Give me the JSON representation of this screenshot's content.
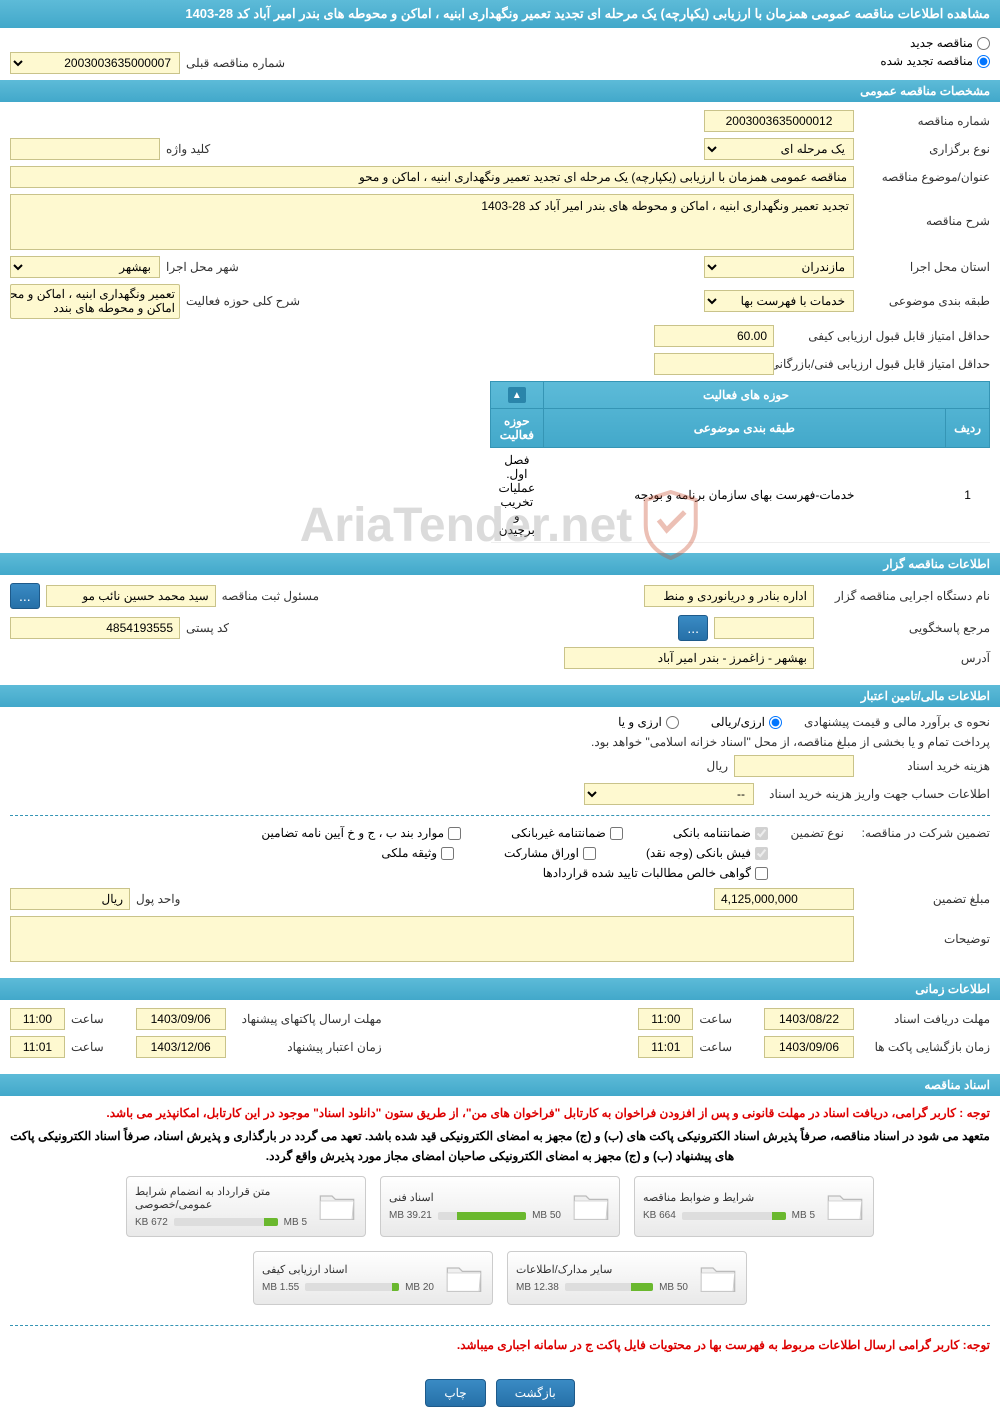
{
  "header": {
    "title": "مشاهده اطلاعات مناقصه عمومی همزمان با ارزیابی (یکپارچه) یک مرحله ای تجدید تعمیر ونگهداری ابنیه ، اماکن و محوطه های بندر امیر آباد کد 28-1403"
  },
  "tender_type": {
    "new_label": "مناقصه جدید",
    "renewed_label": "مناقصه تجدید شده",
    "prev_number_label": "شماره مناقصه قبلی",
    "prev_number_value": "2003003635000007"
  },
  "general": {
    "section_title": "مشخصات مناقصه عمومی",
    "tender_number_label": "شماره مناقصه",
    "tender_number": "2003003635000012",
    "holding_type_label": "نوع برگزاری",
    "holding_type": "یک مرحله ای",
    "keyword_label": "کلید واژه",
    "keyword": "",
    "title_label": "عنوان/موضوع مناقصه",
    "title": "مناقصه عمومی همزمان با ارزیابی (یکپارچه) یک مرحله ای تجدید تعمیر ونگهداری ابنیه ، اماکن و محو",
    "desc_label": "شرح مناقصه",
    "desc": "تجدید تعمیر ونگهداری ابنیه ، اماکن و محوطه های بندر امیر آباد کد 28-1403",
    "province_label": "استان محل اجرا",
    "province": "مازندران",
    "city_label": "شهر محل اجرا",
    "city": "بهشهر",
    "subject_class_label": "طبقه بندی موضوعی",
    "subject_class": "خدمات با فهرست بها",
    "activity_scope_label": "شرح کلی حوزه فعالیت",
    "activity_scope": "تعمیر ونگهداری ابنیه ، اماکن و محوطه های بندد",
    "min_score_qual_label": "حداقل امتیاز قابل قبول ارزیابی کیفی",
    "min_score_qual": "60.00",
    "min_score_tech_label": "حداقل امتیاز قابل قبول ارزیابی فنی/بازرگانی",
    "min_score_tech": ""
  },
  "activity_table": {
    "title": "حوزه های فعالیت",
    "col_row": "ردیف",
    "col_subject": "طبقه بندی موضوعی",
    "col_scope": "حوزه فعالیت",
    "rows": [
      {
        "n": "1",
        "subject": "خدمات-فهرست بهای سازمان برنامه و بودجه",
        "scope": "فصل اول. عملیات تخریب و برچیدن"
      }
    ]
  },
  "organizer": {
    "section_title": "اطلاعات مناقصه گزار",
    "exec_org_label": "نام دستگاه اجرایی مناقصه گزار",
    "exec_org": "اداره بنادر و دریانوردی و منط",
    "registrar_label": "مسئول ثبت مناقصه",
    "registrar": "سید محمد حسین نائب مو",
    "reply_ref_label": "مرجع پاسخگویی",
    "reply_ref": "",
    "postal_label": "کد پستی",
    "postal": "4854193555",
    "address_label": "آدرس",
    "address": "بهشهر - زاغمرز - بندر امیر آباد"
  },
  "financial": {
    "section_title": "اطلاعات مالی/تامین اعتبار",
    "estimate_label": "نحوه ی برآورد مالی و قیمت پیشنهادی",
    "option_rial": "ارزی/ریالی",
    "option_currency": "ارزی و یا",
    "treasury_note": "پرداخت تمام و یا بخشی از مبلغ مناقصه، از محل \"اسناد خزانه اسلامی\" خواهد بود.",
    "doc_cost_label": "هزینه خرید اسناد",
    "doc_cost": "",
    "doc_cost_unit": "ریال",
    "deposit_account_label": "اطلاعات حساب جهت واریز هزینه خرید اسناد",
    "deposit_account": "--",
    "guarantee_label": "تضمین شرکت در مناقصه:",
    "guarantee_type_label": "نوع تضمین",
    "check_bank_guarantee": "ضمانتنامه بانکی",
    "check_nonbank_guarantee": "ضمانتنامه غیربانکی",
    "check_bond": "موارد بند ب ، ج و خ آیین نامه تضامین",
    "check_cash": "فیش بانکی (وجه نقد)",
    "check_securities": "اوراق مشارکت",
    "check_property": "وثیقه ملکی",
    "check_receivables": "گواهی خالص مطالبات تایید شده قراردادها",
    "guarantee_amount_label": "مبلغ تضمین",
    "guarantee_amount": "4,125,000,000",
    "currency_unit_label": "واحد پول",
    "currency_unit": "ریال",
    "remarks_label": "توضیحات",
    "remarks": ""
  },
  "timing": {
    "section_title": "اطلاعات زمانی",
    "deadline_docs_label": "مهلت دریافت اسناد",
    "deadline_docs_date": "1403/08/22",
    "deadline_docs_time_label": "ساعت",
    "deadline_docs_time": "11:00",
    "deadline_proposals_label": "مهلت ارسال پاکتهای پیشنهاد",
    "deadline_proposals_date": "1403/09/06",
    "deadline_proposals_time_label": "ساعت",
    "deadline_proposals_time": "11:00",
    "opening_label": "زمان بازگشایی پاکت ها",
    "opening_date": "1403/09/06",
    "opening_time_label": "ساعت",
    "opening_time": "11:01",
    "validity_label": "زمان اعتبار پیشنهاد",
    "validity_date": "1403/12/06",
    "validity_time_label": "ساعت",
    "validity_time": "11:01"
  },
  "documents": {
    "section_title": "اسناد مناقصه",
    "notice1": "توجه : کاربر گرامی، دریافت اسناد در مهلت قانونی و پس از افزودن فراخوان به کارتابل \"فراخوان های من\"، از طریق ستون \"دانلود اسناد\" موجود در این کارتابل، امکانپذیر می باشد.",
    "notice2": "متعهد می شود در اسناد مناقصه، صرفاً پذیرش اسناد الکترونیکی پاکت های (ب) و (ج) مجهز به امضای الکترونیکی قید شده باشد. تعهد می گردد در بارگذاری و پذیرش اسناد، صرفاً اسناد الکترونیکی پاکت های پیشنهاد (ب) و (ج) مجهز به امضای الکترونیکی صاحبان امضای مجاز مورد پذیرش واقع گردد.",
    "notice3": "توجه: کاربر گرامی ارسال اطلاعات مربوط به فهرست بها در محتویات فایل پاکت ج در سامانه اجباری میباشد.",
    "files": [
      {
        "title": "شرایط و ضوابط مناقصه",
        "used": "664 KB",
        "total": "5 MB",
        "pct": 13
      },
      {
        "title": "اسناد فنی",
        "used": "39.21 MB",
        "total": "50 MB",
        "pct": 78
      },
      {
        "title": "متن قرارداد به انضمام شرایط عمومی/خصوصی",
        "used": "672 KB",
        "total": "5 MB",
        "pct": 13
      },
      {
        "title": "سایر مدارک/اطلاعات",
        "used": "12.38 MB",
        "total": "50 MB",
        "pct": 25
      },
      {
        "title": "اسناد ارزیابی کیفی",
        "used": "1.55 MB",
        "total": "20 MB",
        "pct": 8
      }
    ]
  },
  "buttons": {
    "back": "بازگشت",
    "print": "چاپ"
  },
  "watermark": {
    "text": "AriaTender.net"
  },
  "style": {
    "bar_bg": "#42a8ca",
    "input_bg": "#fef9d0",
    "progress_fill": "#6ab82e"
  }
}
